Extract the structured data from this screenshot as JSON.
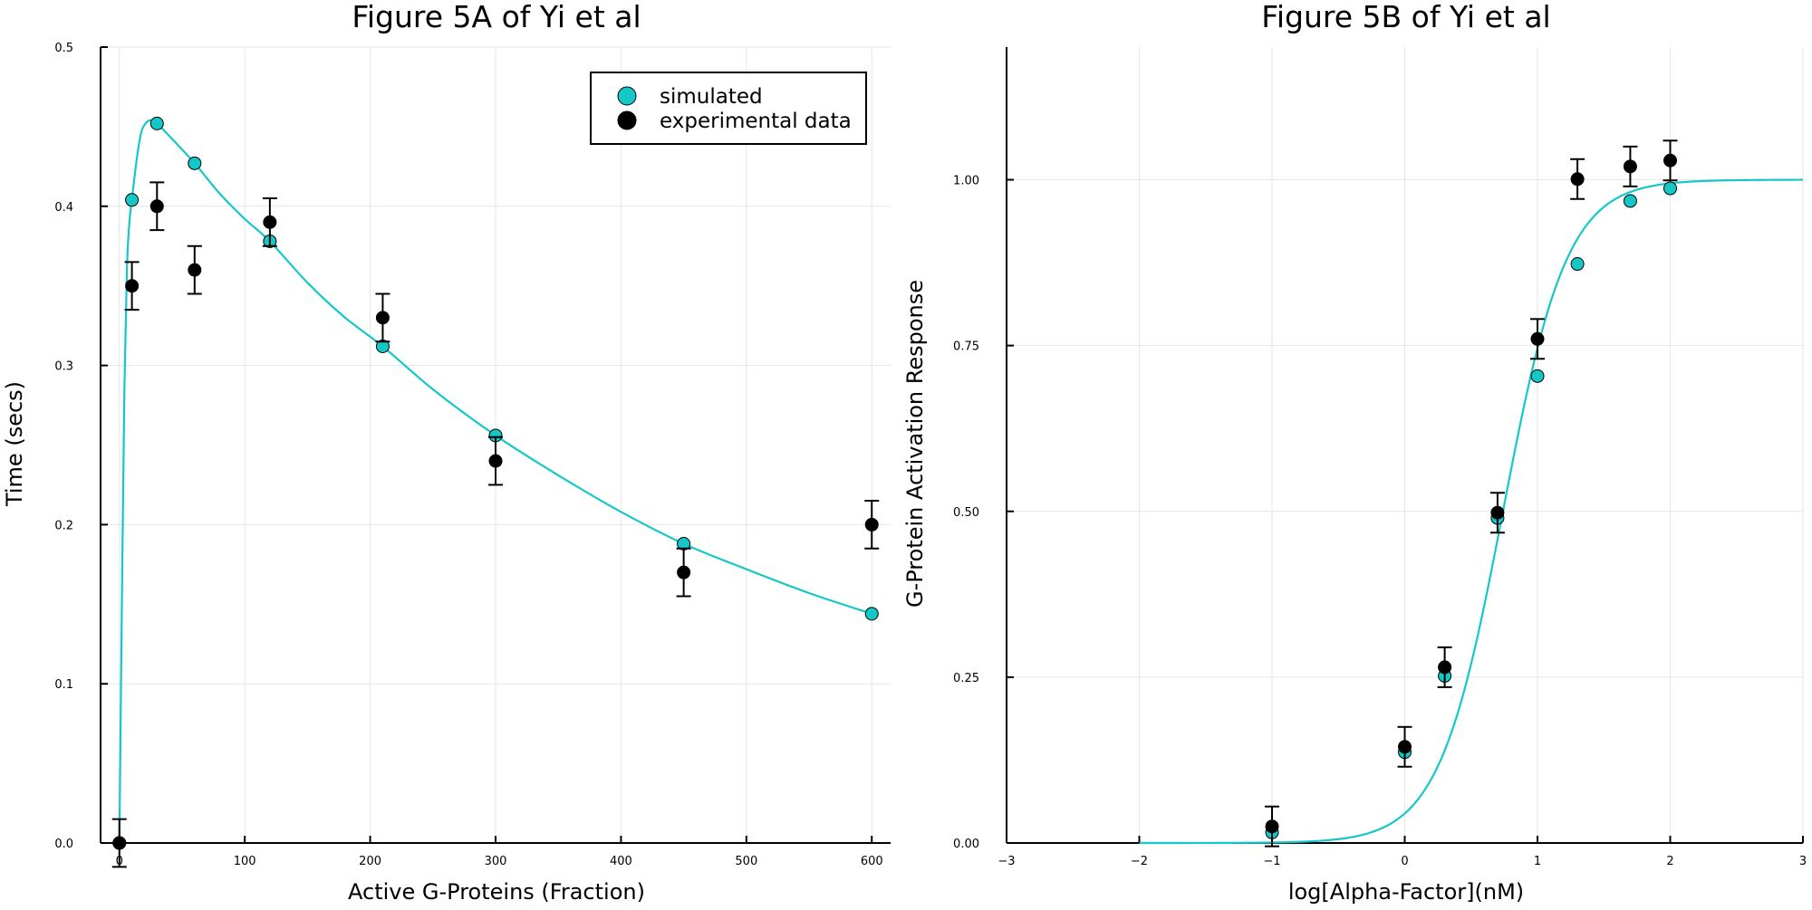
{
  "colors": {
    "simulated": "#14c8c8",
    "experimental": "#000000",
    "grid": "#e6e6e6",
    "axis": "#000000"
  },
  "legend": {
    "placement": "top-right",
    "entries": [
      "simulated",
      "experimental data"
    ]
  },
  "chart_data": [
    {
      "type": "scatter",
      "title": "Figure 5A of Yi et al",
      "xlabel": "Active G-Proteins (Fraction)",
      "ylabel": "Time (secs)",
      "xlim": [
        -15,
        615
      ],
      "ylim": [
        0,
        0.5
      ],
      "xticks": [
        0,
        100,
        200,
        300,
        400,
        500,
        600
      ],
      "xtick_labels": [
        "0",
        "100",
        "200",
        "300",
        "400",
        "500",
        "600"
      ],
      "yticks": [
        0,
        0.1,
        0.2,
        0.3,
        0.4,
        0.5
      ],
      "ytick_labels": [
        "0.0",
        "0.1",
        "0.2",
        "0.3",
        "0.4",
        "0.5"
      ],
      "grid": true,
      "legend": "top-right",
      "curve": {
        "series": "simulated",
        "x": [
          0,
          2,
          4,
          6,
          8,
          10,
          12,
          15,
          18,
          22,
          26,
          30,
          40,
          60,
          80,
          100,
          120,
          150,
          180,
          210,
          250,
          300,
          350,
          400,
          450,
          500,
          550,
          600
        ],
        "y": [
          0,
          0.15,
          0.285,
          0.36,
          0.39,
          0.404,
          0.418,
          0.436,
          0.448,
          0.453,
          0.454,
          0.452,
          0.444,
          0.427,
          0.408,
          0.392,
          0.378,
          0.352,
          0.33,
          0.312,
          0.285,
          0.256,
          0.231,
          0.208,
          0.188,
          0.172,
          0.157,
          0.144
        ]
      },
      "series": [
        {
          "name": "simulated",
          "x": [
            0,
            10,
            30,
            60,
            120,
            210,
            300,
            450,
            600
          ],
          "y": [
            0,
            0.404,
            0.452,
            0.427,
            0.378,
            0.312,
            0.256,
            0.188,
            0.144
          ]
        },
        {
          "name": "experimental data",
          "x": [
            0,
            10,
            30,
            60,
            120,
            210,
            300,
            450,
            600
          ],
          "y": [
            0,
            0.35,
            0.4,
            0.36,
            0.39,
            0.33,
            0.24,
            0.17,
            0.2
          ],
          "error": [
            0.015,
            0.015,
            0.015,
            0.015,
            0.015,
            0.015,
            0.015,
            0.015,
            0.015
          ]
        }
      ]
    },
    {
      "type": "scatter",
      "title": "Figure 5B of Yi et al",
      "xlabel": "log[Alpha-Factor](nM)",
      "ylabel": "G-Protein Activation Response",
      "xlim": [
        -3,
        3
      ],
      "ylim": [
        0,
        1.2
      ],
      "xticks": [
        -3,
        -2,
        -1,
        0,
        1,
        2,
        3
      ],
      "xtick_labels": [
        "−3",
        "−2",
        "−1",
        "0",
        "1",
        "2",
        "3"
      ],
      "yticks": [
        0,
        0.25,
        0.5,
        0.75,
        1.0
      ],
      "ytick_labels": [
        "0.00",
        "0.25",
        "0.50",
        "0.75",
        "1.00"
      ],
      "grid": true,
      "curve": {
        "series": "simulated",
        "hill": {
          "top": 1.0,
          "ec50_log": 0.74,
          "slope": 1.8
        },
        "x_range": [
          -2,
          3
        ]
      },
      "series": [
        {
          "name": "simulated",
          "x": [
            -1,
            0,
            0.301,
            0.699,
            1,
            1.301,
            1.699,
            2
          ],
          "y": [
            0.016,
            0.137,
            0.252,
            0.49,
            0.704,
            0.873,
            0.968,
            0.987
          ]
        },
        {
          "name": "experimental data",
          "x": [
            -1,
            0,
            0.301,
            0.699,
            1,
            1.301,
            1.699,
            2
          ],
          "y": [
            0.025,
            0.145,
            0.265,
            0.498,
            0.76,
            1.001,
            1.02,
            1.029
          ],
          "error": [
            0.03,
            0.03,
            0.03,
            0.03,
            0.03,
            0.03,
            0.03,
            0.03
          ]
        }
      ]
    }
  ]
}
